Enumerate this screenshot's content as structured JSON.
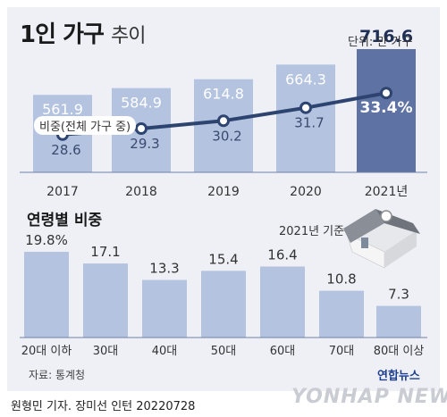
{
  "title": {
    "main": "1인 가구",
    "sub": "추이"
  },
  "unit": "단위: 만 가구",
  "legend_label": "비중(전체 가구 중)",
  "section2_title": "연령별 비중",
  "base_year_label": "2021년 기준",
  "source": "자료: 통계청",
  "credit": "원형민 기자. 장미선 인턴  20220728",
  "logo_text": "연합뉴스",
  "watermark": "YONHAP NEWS",
  "colors": {
    "bar": "#b3c3e0",
    "bar_highlight": "#5e73a3",
    "line": "#2e4470",
    "card": "#eef0f6"
  },
  "chart_data": [
    {
      "type": "bar",
      "categories": [
        "2017",
        "2018",
        "2019",
        "2020",
        "2021년"
      ],
      "values": [
        561.9,
        584.9,
        614.8,
        664.3,
        716.6
      ],
      "value_labels": [
        "561.9",
        "584.9",
        "614.8",
        "664.3",
        "716.6"
      ],
      "highlight_index": 4,
      "line_series": {
        "name": "비중(전체 가구 중)",
        "values": [
          28.6,
          29.3,
          30.2,
          31.7,
          33.4
        ],
        "labels": [
          "28.6",
          "29.3",
          "30.2",
          "31.7",
          "33.4%"
        ]
      }
    },
    {
      "type": "bar",
      "categories": [
        "20대 이하",
        "30대",
        "40대",
        "50대",
        "60대",
        "70대",
        "80대 이상"
      ],
      "values": [
        19.8,
        17.1,
        13.3,
        15.4,
        16.4,
        10.8,
        7.3
      ],
      "value_labels": [
        "19.8%",
        "17.1",
        "13.3",
        "15.4",
        "16.4",
        "10.8",
        "7.3"
      ]
    }
  ]
}
